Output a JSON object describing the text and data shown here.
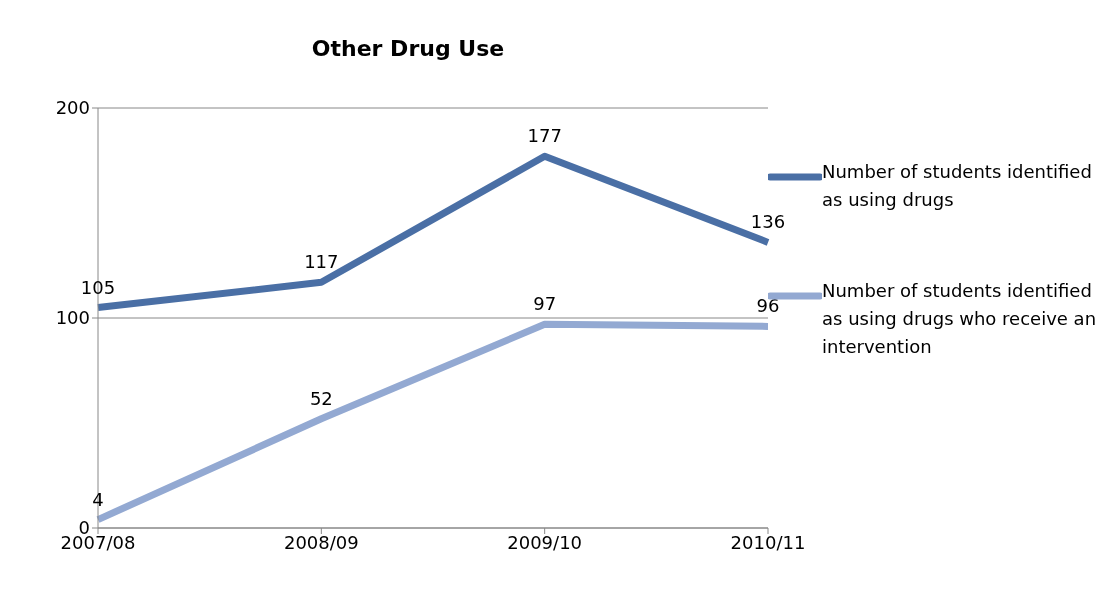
{
  "chart_data": {
    "type": "line",
    "title": "Other Drug Use",
    "categories": [
      "2007/08",
      "2008/09",
      "2009/10",
      "2010/11"
    ],
    "series": [
      {
        "name": "Number of students identified as using drugs",
        "color": "#4a6fa5",
        "values": [
          105,
          117,
          177,
          136
        ]
      },
      {
        "name": "Number of students identified as using drugs who receive an intervention",
        "color": "#93a9d2",
        "values": [
          4,
          52,
          97,
          96
        ]
      }
    ],
    "ylim": [
      0,
      200
    ],
    "yticks": [
      0,
      100,
      200
    ],
    "grid": "y",
    "legend": "right",
    "data_labels": true,
    "marker": "none",
    "line_style": "solid"
  }
}
